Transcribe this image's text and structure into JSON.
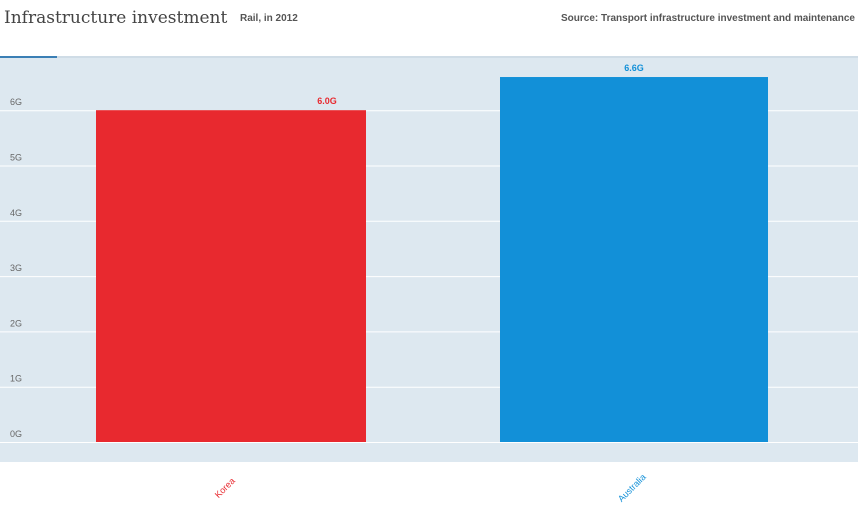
{
  "chart_data": {
    "type": "bar",
    "title": "Infrastructure investment",
    "subtitle": "Rail, in 2012",
    "source": "Source: Transport infrastructure investment and maintenance",
    "categories": [
      "Korea",
      "Australia"
    ],
    "values": [
      6.0,
      6.6
    ],
    "value_labels": [
      "6.0G",
      "6.6G"
    ],
    "colors": [
      "#e8292f",
      "#1290d8"
    ],
    "ylim": [
      0,
      7
    ],
    "yticks": [
      0,
      1,
      2,
      3,
      4,
      5,
      6
    ],
    "ytick_labels": [
      "0G",
      "1G",
      "2G",
      "3G",
      "4G",
      "5G",
      "6G"
    ],
    "grid": true,
    "xlabel": "",
    "ylabel": ""
  },
  "theme": {
    "plot_background": "#dde8f0",
    "grid_color": "#ffffff",
    "tick_color": "#666666"
  }
}
